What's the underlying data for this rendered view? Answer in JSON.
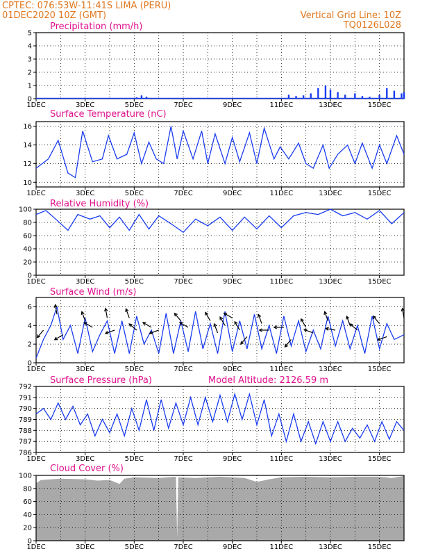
{
  "header": {
    "line1": "CPTEC:    076:53W-11:41S   LIMA (PERU)",
    "line2": "01DEC2020  10Z  (GMT)",
    "grid_note": "Vertical Grid Line: 10Z",
    "code": "TQ0126L028"
  },
  "colors": {
    "header": "#e07820",
    "title": "#e0108c",
    "series": "#1a3cf0",
    "cloud": "#a9a9a9"
  },
  "x_ticks": [
    "1DEC",
    "3DEC",
    "5DEC",
    "7DEC",
    "9DEC",
    "11DEC",
    "13DEC",
    "15DEC"
  ],
  "chart_data": [
    {
      "id": "precip",
      "type": "bar",
      "title": "Precipitation (mm/h)",
      "ylim": [
        0,
        5
      ],
      "yticks": [
        0,
        1,
        2,
        3,
        4,
        5
      ],
      "x_range_days": [
        1,
        16
      ],
      "values_by_day": [
        [
          1,
          0
        ],
        [
          5.1,
          0.1
        ],
        [
          5.3,
          0.25
        ],
        [
          5.5,
          0.15
        ],
        [
          6,
          0
        ],
        [
          11,
          0.05
        ],
        [
          11.3,
          0.3
        ],
        [
          11.6,
          0.2
        ],
        [
          11.9,
          0.25
        ],
        [
          12.2,
          0.4
        ],
        [
          12.5,
          0.8
        ],
        [
          12.8,
          1.0
        ],
        [
          13.0,
          0.7
        ],
        [
          13.3,
          0.5
        ],
        [
          13.6,
          0.3
        ],
        [
          14.0,
          0.4
        ],
        [
          14.3,
          0.2
        ],
        [
          14.6,
          0.15
        ],
        [
          15.0,
          0.3
        ],
        [
          15.3,
          0.8
        ],
        [
          15.6,
          0.6
        ],
        [
          15.9,
          0.4
        ],
        [
          16,
          0.5
        ]
      ]
    },
    {
      "id": "temp",
      "type": "line",
      "title": "Surface Temperature (nC)",
      "ylim": [
        9.5,
        16.5
      ],
      "yticks": [
        10,
        12,
        14,
        16
      ],
      "x": [
        1,
        1.5,
        1.9,
        2.3,
        2.6,
        2.9,
        3.3,
        3.7,
        3.95,
        4.3,
        4.7,
        5.0,
        5.3,
        5.6,
        5.9,
        6.2,
        6.5,
        6.75,
        7.0,
        7.4,
        7.75,
        8.0,
        8.3,
        8.7,
        9.0,
        9.3,
        9.7,
        10.0,
        10.3,
        10.7,
        10.95,
        11.3,
        11.7,
        12.0,
        12.3,
        12.7,
        12.95,
        13.3,
        13.7,
        14.0,
        14.3,
        14.7,
        15.0,
        15.3,
        15.7,
        16.0
      ],
      "values": [
        11.5,
        12.5,
        14.5,
        11.0,
        10.5,
        15.5,
        12.2,
        12.5,
        15.0,
        12.5,
        13.0,
        15.3,
        12.0,
        14.3,
        12.5,
        12.0,
        16.0,
        12.5,
        15.5,
        12.5,
        15.5,
        12.0,
        15.2,
        12.0,
        14.8,
        12.2,
        15.3,
        12.0,
        15.8,
        12.5,
        13.8,
        12.5,
        14.2,
        12.0,
        11.5,
        14.0,
        11.5,
        13.0,
        14.0,
        12.0,
        14.2,
        11.5,
        14.0,
        12.0,
        15.0,
        13.0
      ]
    },
    {
      "id": "rh",
      "type": "line",
      "title": "Relative Humidity (%)",
      "ylim": [
        0,
        100
      ],
      "yticks": [
        0,
        20,
        40,
        60,
        80,
        100
      ],
      "x": [
        1,
        1.4,
        1.8,
        2.3,
        2.7,
        3.2,
        3.6,
        4.0,
        4.4,
        4.8,
        5.2,
        5.6,
        6.0,
        6.5,
        7.0,
        7.5,
        8.0,
        8.5,
        9.0,
        9.5,
        10.0,
        10.5,
        11.0,
        11.5,
        12.0,
        12.5,
        13.0,
        13.5,
        14.0,
        14.5,
        15.0,
        15.5,
        16.0
      ],
      "values": [
        92,
        98,
        85,
        68,
        92,
        85,
        90,
        72,
        88,
        68,
        92,
        70,
        90,
        78,
        65,
        85,
        75,
        88,
        68,
        88,
        70,
        90,
        72,
        90,
        95,
        92,
        100,
        90,
        95,
        85,
        98,
        78,
        95
      ]
    },
    {
      "id": "wind",
      "type": "line",
      "title": "Surface Wind (m/s)",
      "ylim": [
        0,
        7
      ],
      "yticks": [
        0,
        2,
        4,
        6
      ],
      "x": [
        1,
        1.3,
        1.6,
        1.85,
        2.1,
        2.4,
        2.7,
        3.0,
        3.3,
        3.6,
        3.9,
        4.2,
        4.5,
        4.8,
        5.1,
        5.4,
        5.7,
        6.0,
        6.3,
        6.6,
        6.9,
        7.2,
        7.5,
        7.8,
        8.1,
        8.4,
        8.7,
        9.0,
        9.3,
        9.6,
        9.9,
        10.2,
        10.5,
        10.8,
        11.1,
        11.4,
        11.7,
        12.0,
        12.3,
        12.6,
        12.9,
        13.2,
        13.5,
        13.8,
        14.1,
        14.4,
        14.7,
        15.0,
        15.3,
        15.6,
        16.0
      ],
      "values": [
        0.5,
        2.5,
        4.0,
        6.0,
        2.5,
        4.0,
        1.0,
        4.8,
        1.2,
        3.0,
        4.5,
        1.0,
        4.5,
        1.0,
        5.0,
        2.0,
        3.5,
        1.0,
        5.3,
        1.0,
        4.5,
        1.2,
        5.5,
        1.5,
        4.2,
        1.0,
        5.5,
        1.2,
        4.5,
        1.5,
        5.2,
        1.5,
        4.0,
        1.0,
        5.0,
        1.8,
        4.5,
        1.2,
        3.5,
        1.5,
        5.0,
        1.8,
        4.5,
        1.5,
        4.0,
        1.0,
        5.0,
        1.5,
        4.2,
        2.5,
        3.0
      ],
      "arrows": [
        [
          1.3,
          3.5,
          230
        ],
        [
          1.85,
          5.2,
          100
        ],
        [
          2.1,
          3.0,
          210
        ],
        [
          3.0,
          4.5,
          110
        ],
        [
          3.3,
          3.8,
          150
        ],
        [
          3.9,
          4.8,
          100
        ],
        [
          4.2,
          3.5,
          200
        ],
        [
          4.8,
          4.8,
          110
        ],
        [
          5.1,
          3.5,
          140
        ],
        [
          5.7,
          3.8,
          150
        ],
        [
          6.0,
          3.5,
          200
        ],
        [
          6.9,
          4.5,
          130
        ],
        [
          7.2,
          3.8,
          150
        ],
        [
          8.1,
          4.5,
          120
        ],
        [
          8.4,
          3.2,
          110
        ],
        [
          8.7,
          4.0,
          120
        ],
        [
          9.0,
          4.8,
          150
        ],
        [
          9.3,
          3.5,
          120
        ],
        [
          9.6,
          2.8,
          230
        ],
        [
          10.2,
          4.2,
          110
        ],
        [
          10.5,
          3.5,
          180
        ],
        [
          11.1,
          3.8,
          180
        ],
        [
          11.4,
          2.5,
          230
        ],
        [
          12.0,
          3.8,
          120
        ],
        [
          12.3,
          3.2,
          160
        ],
        [
          12.9,
          4.5,
          110
        ],
        [
          13.2,
          3.5,
          170
        ],
        [
          13.8,
          4.0,
          110
        ],
        [
          14.1,
          3.5,
          140
        ],
        [
          15.0,
          4.2,
          130
        ],
        [
          15.3,
          2.8,
          200
        ],
        [
          16.0,
          4.8,
          100
        ]
      ]
    },
    {
      "id": "pressure",
      "type": "line",
      "title": "Surface Pressure (hPa)",
      "note": "Model Altitude: 2126.59 m",
      "ylim": [
        786,
        792
      ],
      "yticks": [
        786,
        787,
        788,
        789,
        790,
        791,
        792
      ],
      "x": [
        1,
        1.3,
        1.6,
        1.9,
        2.2,
        2.5,
        2.8,
        3.1,
        3.4,
        3.7,
        4.0,
        4.3,
        4.6,
        4.9,
        5.2,
        5.5,
        5.8,
        6.1,
        6.4,
        6.7,
        7.0,
        7.3,
        7.6,
        7.9,
        8.2,
        8.5,
        8.8,
        9.1,
        9.4,
        9.7,
        10.0,
        10.3,
        10.6,
        10.9,
        11.2,
        11.5,
        11.8,
        12.1,
        12.4,
        12.7,
        13.0,
        13.3,
        13.6,
        13.9,
        14.2,
        14.5,
        14.8,
        15.1,
        15.4,
        15.7,
        16.0
      ],
      "values": [
        789.5,
        790.0,
        789.0,
        790.5,
        789.0,
        790.2,
        788.5,
        789.5,
        787.5,
        789.0,
        787.8,
        789.5,
        787.5,
        790.0,
        788.0,
        790.8,
        788.0,
        790.8,
        788.2,
        790.5,
        788.5,
        791.0,
        788.5,
        791.0,
        788.8,
        791.2,
        788.8,
        791.3,
        789.0,
        791.3,
        788.5,
        790.8,
        787.5,
        789.5,
        787.0,
        789.5,
        787.0,
        788.8,
        786.8,
        788.8,
        787.0,
        788.8,
        787.0,
        788.2,
        787.3,
        788.5,
        787.0,
        788.8,
        787.2,
        788.8,
        788.0
      ]
    },
    {
      "id": "cloud",
      "type": "area",
      "title": "Cloud Cover (%)",
      "ylim": [
        0,
        100
      ],
      "yticks": [
        0,
        20,
        40,
        60,
        80,
        100
      ],
      "x": [
        1,
        1.2,
        2.0,
        3.0,
        3.5,
        4.0,
        4.4,
        4.6,
        5.0,
        6.0,
        6.7,
        6.75,
        6.8,
        7.5,
        8.5,
        9.5,
        10.0,
        10.5,
        11.0,
        12.0,
        13.0,
        14.0,
        15.0,
        15.5,
        16.0
      ],
      "values": [
        88,
        93,
        95,
        94,
        92,
        93,
        87,
        95,
        97,
        96,
        98,
        5,
        97,
        96,
        98,
        96,
        90,
        94,
        97,
        98,
        97,
        98,
        98,
        96,
        99
      ]
    }
  ]
}
